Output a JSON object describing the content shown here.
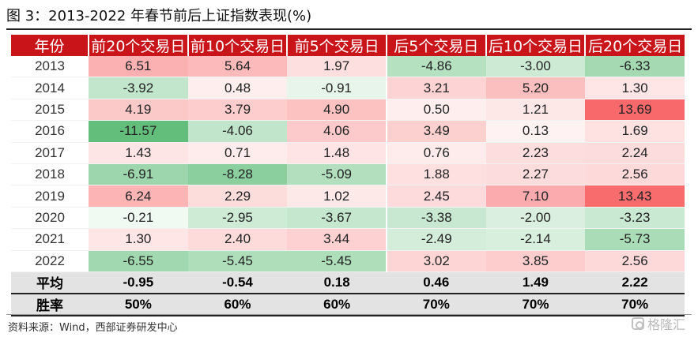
{
  "title": "图 3：2013-2022 年春节前后上证指数表现(%)",
  "headers": [
    "年份",
    "前20个交易日",
    "前10个交易日",
    "前5个交易日",
    "后5个交易日",
    "后10个交易日",
    "后20个交易日"
  ],
  "rows": [
    {
      "year": "2013",
      "values": [
        "6.51",
        "5.64",
        "1.97",
        "-4.86",
        "-3.00",
        "-6.33"
      ]
    },
    {
      "year": "2014",
      "values": [
        "-3.92",
        "0.48",
        "-0.91",
        "3.21",
        "5.20",
        "1.30"
      ]
    },
    {
      "year": "2015",
      "values": [
        "4.19",
        "3.79",
        "4.90",
        "0.50",
        "1.21",
        "13.69"
      ]
    },
    {
      "year": "2016",
      "values": [
        "-11.57",
        "-4.06",
        "4.06",
        "3.49",
        "0.13",
        "1.69"
      ]
    },
    {
      "year": "2017",
      "values": [
        "1.43",
        "0.71",
        "1.48",
        "0.76",
        "2.23",
        "2.24"
      ]
    },
    {
      "year": "2018",
      "values": [
        "-6.91",
        "-8.28",
        "-5.09",
        "1.88",
        "2.27",
        "2.56"
      ]
    },
    {
      "year": "2019",
      "values": [
        "6.24",
        "2.29",
        "1.02",
        "2.45",
        "7.10",
        "13.43"
      ]
    },
    {
      "year": "2020",
      "values": [
        "-0.21",
        "-2.95",
        "-3.67",
        "-3.38",
        "-2.00",
        "-3.23"
      ]
    },
    {
      "year": "2021",
      "values": [
        "1.30",
        "2.40",
        "3.44",
        "-2.49",
        "-2.14",
        "-5.73"
      ]
    },
    {
      "year": "2022",
      "values": [
        "-6.55",
        "-5.45",
        "-5.45",
        "3.02",
        "3.85",
        "2.56"
      ]
    }
  ],
  "summary": [
    {
      "label": "平均",
      "values": [
        "-0.95",
        "-0.54",
        "0.18",
        "0.46",
        "1.49",
        "2.22"
      ]
    },
    {
      "label": "胜率",
      "values": [
        "50%",
        "60%",
        "60%",
        "70%",
        "70%",
        "70%"
      ]
    }
  ],
  "source": "资料来源：Wind，西部证券研发中心",
  "watermark": "格隆汇",
  "colors": {
    "header_bg": "#c9141a",
    "positive_max": "#f8696b",
    "negative_max": "#63be7b",
    "summary_bg": "#e3e3e3"
  }
}
